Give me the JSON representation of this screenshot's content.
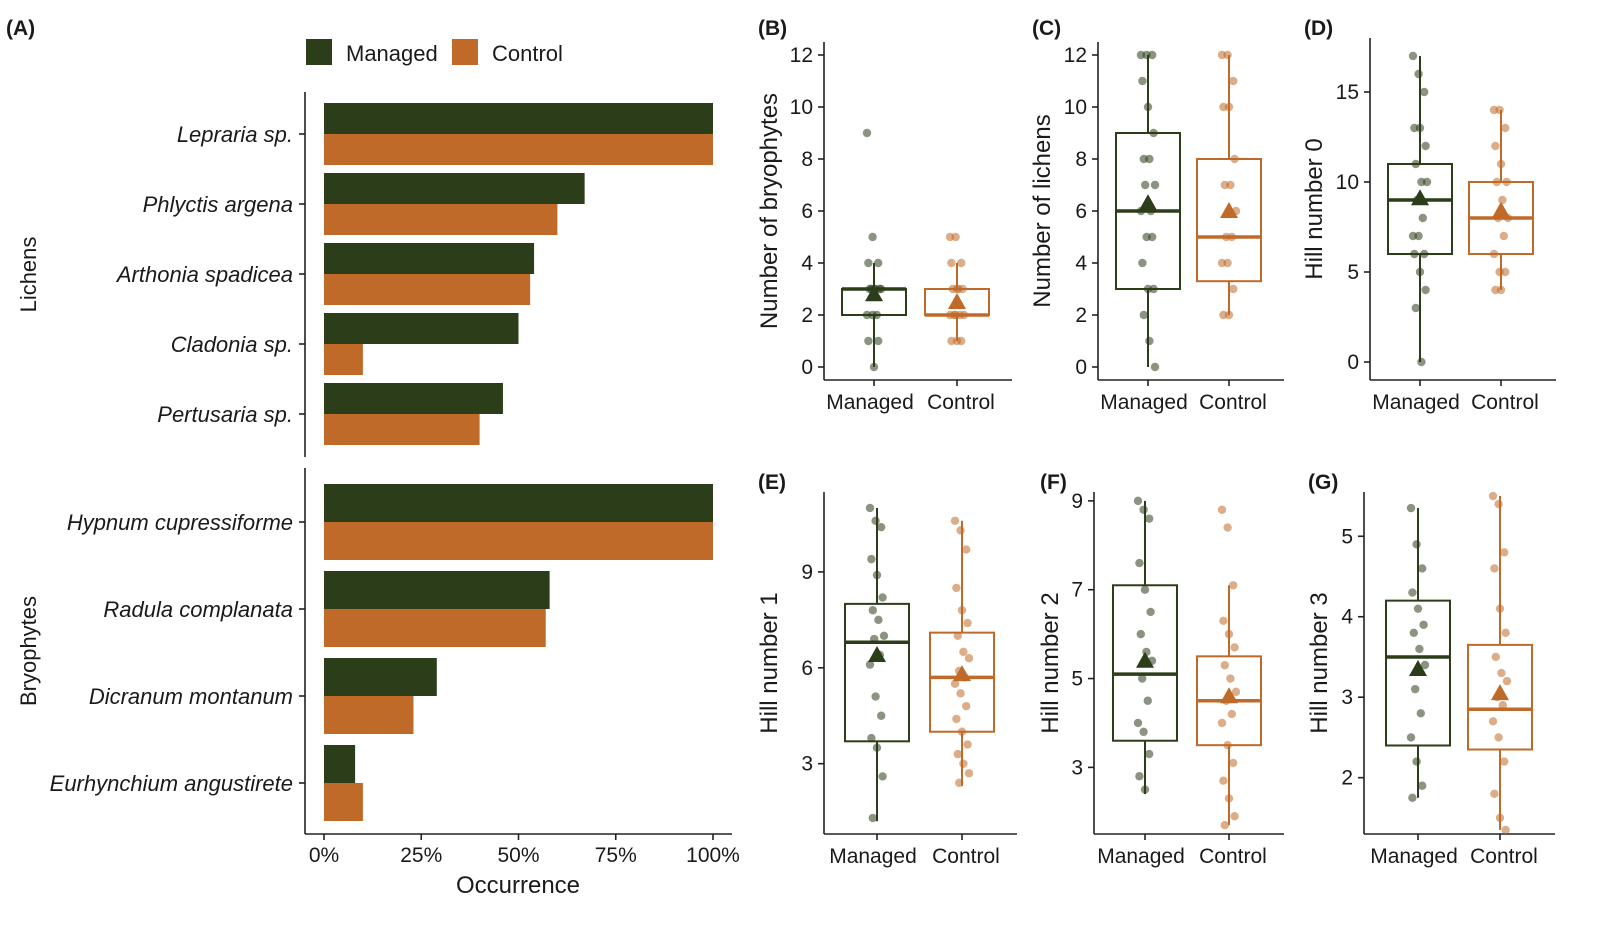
{
  "colors": {
    "managed": "#2c3d1a",
    "control": "#bf6a28"
  },
  "legend": {
    "managed": "Managed",
    "control": "Control"
  },
  "chart_data": [
    {
      "type": "bar",
      "panel": "(A)",
      "xlabel": "Occurrence",
      "xticks": [
        "0%",
        "25%",
        "50%",
        "75%",
        "100%"
      ],
      "xlim": [
        0,
        100
      ],
      "groups": [
        {
          "name": "Lichens",
          "species": [
            "Lepraria sp.",
            "Phlyctis argena",
            "Arthonia spadicea",
            "Cladonia sp.",
            "Pertusaria sp."
          ],
          "managed": [
            100,
            67,
            54,
            50,
            46
          ],
          "control": [
            100,
            60,
            53,
            10,
            40
          ]
        },
        {
          "name": "Bryophytes",
          "species": [
            "Hypnum cupressiforme",
            "Radula complanata",
            "Dicranum montanum",
            "Eurhynchium angustirete"
          ],
          "managed": [
            100,
            58,
            29,
            8
          ],
          "control": [
            100,
            57,
            23,
            10
          ]
        }
      ]
    },
    {
      "type": "boxplot",
      "panel": "(B)",
      "ylabel": "Number of bryophytes",
      "ylim": [
        -0.5,
        12.5
      ],
      "yticks": [
        0,
        2,
        4,
        6,
        8,
        10,
        12
      ],
      "ytick_labels": [
        "0",
        "2",
        "4",
        "6",
        "8",
        "10",
        "12"
      ],
      "categories": [
        "Managed",
        "Control"
      ],
      "boxes": [
        {
          "min": 0,
          "q1": 2,
          "median": 3,
          "q3": 3,
          "max": 4,
          "mean": 2.8,
          "points": [
            9,
            5,
            4,
            4,
            3,
            3,
            3,
            3,
            3,
            3,
            2,
            2,
            2,
            1,
            1,
            0
          ]
        },
        {
          "min": 1,
          "q1": 2,
          "median": 2,
          "q3": 3,
          "max": 4,
          "mean": 2.5,
          "points": [
            5,
            5,
            4,
            4,
            3,
            3,
            3,
            3,
            2,
            2,
            2,
            2,
            2,
            1,
            1,
            1
          ]
        }
      ]
    },
    {
      "type": "boxplot",
      "panel": "(C)",
      "ylabel": "Number of lichens",
      "ylim": [
        -0.5,
        12.5
      ],
      "yticks": [
        0,
        2,
        4,
        6,
        8,
        10,
        12
      ],
      "ytick_labels": [
        "0",
        "2",
        "4",
        "6",
        "8",
        "10",
        "12"
      ],
      "categories": [
        "Managed",
        "Control"
      ],
      "boxes": [
        {
          "min": 0,
          "q1": 3,
          "median": 6,
          "q3": 9,
          "max": 12,
          "mean": 6.3,
          "points": [
            12,
            12,
            12,
            11,
            10,
            9,
            8,
            8,
            7,
            7,
            6,
            6,
            5,
            5,
            4,
            3,
            3,
            2,
            1,
            0
          ]
        },
        {
          "min": 2,
          "q1": 3.3,
          "median": 5,
          "q3": 8,
          "max": 12,
          "mean": 6.0,
          "points": [
            12,
            12,
            11,
            10,
            10,
            8,
            7,
            7,
            6,
            5,
            5,
            4,
            4,
            3,
            2,
            2
          ]
        }
      ]
    },
    {
      "type": "boxplot",
      "panel": "(D)",
      "ylabel": "Hill number 0",
      "ylim": [
        -1,
        18
      ],
      "yticks": [
        0,
        5,
        10,
        15
      ],
      "ytick_labels": [
        "0",
        "5",
        "10",
        "15"
      ],
      "categories": [
        "Managed",
        "Control"
      ],
      "boxes": [
        {
          "min": 0,
          "q1": 6,
          "median": 9,
          "q3": 11,
          "max": 17,
          "mean": 9.1,
          "points": [
            17,
            16,
            15,
            13,
            13,
            12,
            11,
            10,
            10,
            9,
            8,
            7,
            7,
            6,
            6,
            5,
            4,
            3,
            0
          ]
        },
        {
          "min": 4,
          "q1": 6,
          "median": 8,
          "q3": 10,
          "max": 14,
          "mean": 8.4,
          "points": [
            14,
            14,
            13,
            12,
            11,
            10,
            10,
            9,
            8,
            8,
            7,
            6,
            5,
            5,
            4,
            4
          ]
        }
      ]
    },
    {
      "type": "boxplot",
      "panel": "(E)",
      "ylabel": "Hill number 1",
      "ylim": [
        0.8,
        11.5
      ],
      "yticks": [
        3,
        6,
        9
      ],
      "ytick_labels": [
        "3",
        "6",
        "9"
      ],
      "categories": [
        "Managed",
        "Control"
      ],
      "boxes": [
        {
          "min": 1.2,
          "q1": 3.7,
          "median": 6.8,
          "q3": 8.0,
          "max": 11.0,
          "mean": 6.4,
          "points": [
            11.0,
            10.6,
            10.4,
            9.4,
            8.9,
            8.2,
            7.8,
            7.5,
            7.0,
            6.9,
            6.4,
            6.1,
            5.1,
            4.5,
            3.8,
            3.5,
            2.6,
            1.3
          ]
        },
        {
          "min": 2.3,
          "q1": 4.0,
          "median": 5.7,
          "q3": 7.1,
          "max": 10.6,
          "mean": 5.8,
          "points": [
            10.6,
            10.3,
            9.7,
            8.5,
            7.8,
            7.4,
            7.0,
            6.5,
            6.3,
            5.9,
            5.7,
            5.5,
            5.2,
            4.8,
            4.4,
            4.0,
            3.6,
            3.3,
            3.0,
            2.7,
            2.4
          ]
        }
      ]
    },
    {
      "type": "boxplot",
      "panel": "(F)",
      "ylabel": "Hill number 2",
      "ylim": [
        1.5,
        9.2
      ],
      "yticks": [
        3,
        5,
        7,
        9
      ],
      "ytick_labels": [
        "3",
        "5",
        "7",
        "9"
      ],
      "categories": [
        "Managed",
        "Control"
      ],
      "boxes": [
        {
          "min": 2.4,
          "q1": 3.6,
          "median": 5.1,
          "q3": 7.1,
          "max": 9.0,
          "mean": 5.4,
          "points": [
            9.0,
            8.8,
            8.6,
            7.6,
            7.0,
            6.5,
            6.0,
            5.6,
            5.4,
            5.0,
            4.5,
            4.0,
            3.8,
            3.3,
            2.8,
            2.5
          ]
        },
        {
          "min": 1.7,
          "q1": 3.5,
          "median": 4.5,
          "q3": 5.5,
          "max": 7.1,
          "mean": 4.6,
          "points": [
            8.8,
            8.4,
            7.1,
            6.3,
            6.0,
            5.7,
            5.3,
            5.0,
            4.7,
            4.5,
            4.2,
            4.0,
            3.5,
            3.1,
            2.7,
            2.3,
            1.9,
            1.7
          ]
        }
      ]
    },
    {
      "type": "boxplot",
      "panel": "(G)",
      "ylabel": "Hill number 3",
      "ylim": [
        1.3,
        5.55
      ],
      "yticks": [
        2,
        3,
        4,
        5
      ],
      "ytick_labels": [
        "2",
        "3",
        "4",
        "5"
      ],
      "categories": [
        "Managed",
        "Control"
      ],
      "boxes": [
        {
          "min": 1.75,
          "q1": 2.4,
          "median": 3.5,
          "q3": 4.2,
          "max": 5.35,
          "mean": 3.35,
          "points": [
            5.35,
            4.9,
            4.6,
            4.3,
            4.1,
            3.9,
            3.8,
            3.6,
            3.4,
            3.1,
            2.8,
            2.5,
            2.2,
            1.9,
            1.75
          ]
        },
        {
          "min": 1.35,
          "q1": 2.35,
          "median": 2.85,
          "q3": 3.65,
          "max": 5.5,
          "mean": 3.05,
          "points": [
            5.5,
            5.4,
            4.8,
            4.6,
            4.1,
            3.8,
            3.5,
            3.3,
            3.2,
            3.0,
            2.9,
            2.7,
            2.5,
            2.2,
            1.8,
            1.5,
            1.35
          ]
        }
      ]
    }
  ]
}
